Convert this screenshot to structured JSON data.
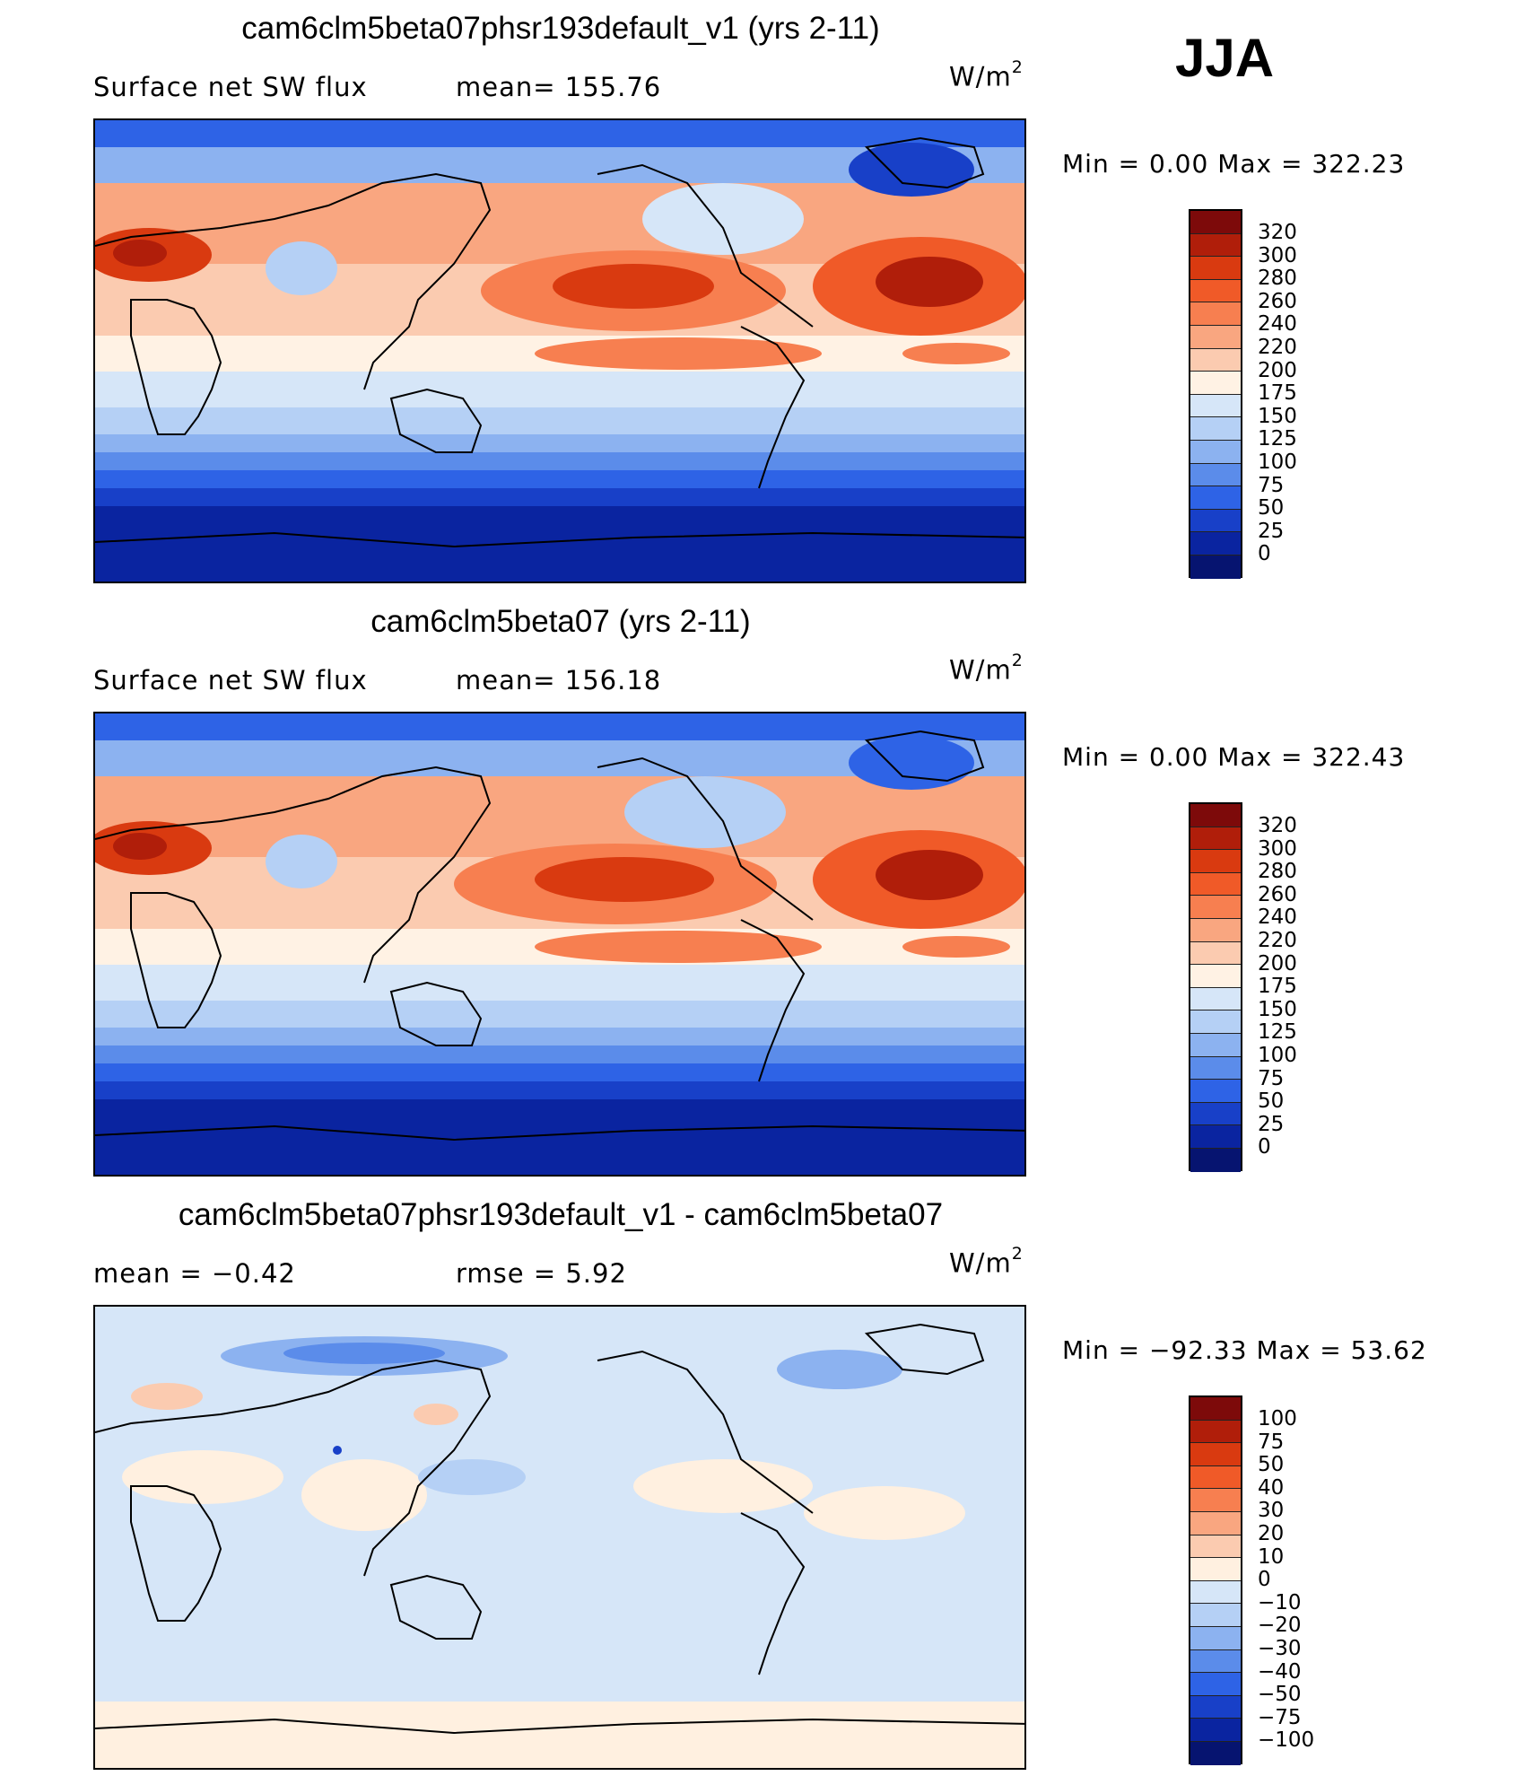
{
  "season": "JJA",
  "panels": [
    {
      "title": "cam6clm5beta07phsr193default_v1 (yrs 2-11)",
      "left_label": "Surface  net  SW  flux",
      "mid_label": "mean=  155.76",
      "units_base": "W/m",
      "units_exp": "2",
      "minmax": "Min  =     0.00  Max  =  322.23",
      "colorbar_labels": [
        "320",
        "300",
        "280",
        "260",
        "240",
        "220",
        "200",
        "175",
        "150",
        "125",
        "100",
        "75",
        "50",
        "25",
        "0"
      ]
    },
    {
      "title": "cam6clm5beta07 (yrs 2-11)",
      "left_label": "Surface  net  SW  flux",
      "mid_label": "mean=  156.18",
      "units_base": "W/m",
      "units_exp": "2",
      "minmax": "Min  =     0.00  Max  =  322.43",
      "colorbar_labels": [
        "320",
        "300",
        "280",
        "260",
        "240",
        "220",
        "200",
        "175",
        "150",
        "125",
        "100",
        "75",
        "50",
        "25",
        "0"
      ]
    },
    {
      "title": "cam6clm5beta07phsr193default_v1 - cam6clm5beta07",
      "left_label": "mean  =    −0.42",
      "mid_label": "rmse  =     5.92",
      "units_base": "W/m",
      "units_exp": "2",
      "minmax": "Min  = −92.33  Max  =    53.62",
      "colorbar_labels": [
        "100",
        "75",
        "50",
        "40",
        "30",
        "20",
        "10",
        "0",
        "−10",
        "−20",
        "−30",
        "−40",
        "−50",
        "−75",
        "−100"
      ]
    }
  ],
  "colors": {
    "abs_scale": [
      "#7d0a0a",
      "#b01e0a",
      "#d93a10",
      "#f05a28",
      "#f77f50",
      "#f9a680",
      "#fbcbb0",
      "#fff2e4",
      "#d6e6f8",
      "#b5d0f5",
      "#8cb2f0",
      "#5b8cea",
      "#2e63e6",
      "#1840c8",
      "#0a24a0",
      "#061470"
    ],
    "diff_scale": [
      "#7d0a0a",
      "#b01e0a",
      "#d93a10",
      "#f05a28",
      "#f77f50",
      "#f9a680",
      "#fbcbb0",
      "#fff0e0",
      "#d6e6f8",
      "#b5d0f5",
      "#8cb2f0",
      "#5b8cea",
      "#2e63e6",
      "#1840c8",
      "#0a24a0",
      "#061470"
    ],
    "coastline": "#000000"
  }
}
